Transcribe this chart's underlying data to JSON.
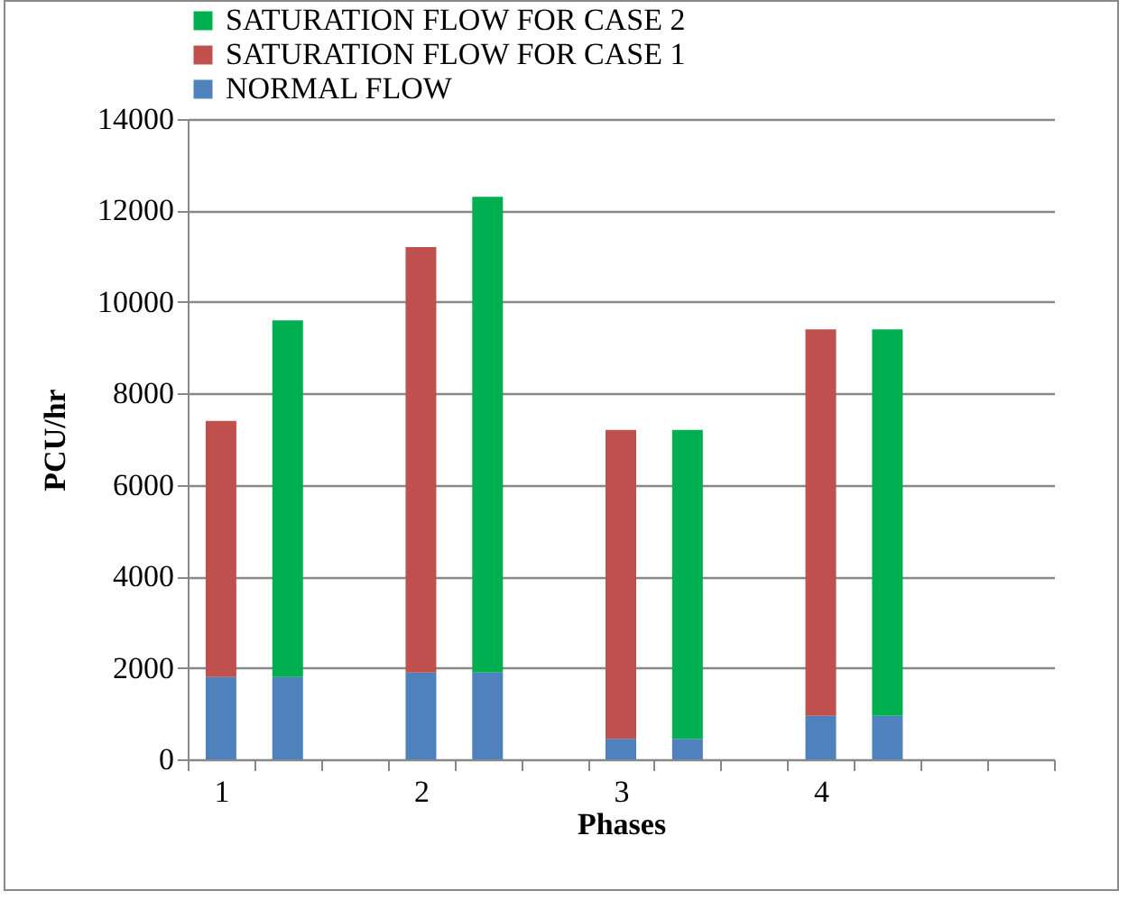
{
  "chart_data": {
    "type": "bar",
    "xlabel": "Phases",
    "ylabel": "PCU/hr",
    "categories": [
      "1",
      null,
      null,
      "2",
      null,
      null,
      "3",
      null,
      null,
      "4",
      null,
      null,
      null
    ],
    "series": [
      {
        "name": "NORMAL FLOW",
        "color": "#4f81bd",
        "values": [
          1800,
          1800,
          null,
          1900,
          1900,
          null,
          450,
          450,
          null,
          950,
          950,
          null,
          null
        ]
      },
      {
        "name": "SATURATION FLOW FOR CASE 1",
        "color": "#c0504d",
        "values": [
          5600,
          null,
          null,
          9300,
          null,
          null,
          6750,
          null,
          null,
          8450,
          null,
          null,
          null
        ]
      },
      {
        "name": "SATURATION FLOW FOR CASE 2",
        "color": "#00b050",
        "values": [
          null,
          7800,
          null,
          null,
          10400,
          null,
          null,
          6750,
          null,
          null,
          8450,
          null,
          null
        ]
      }
    ],
    "stacked": true,
    "ylim": [
      0,
      14000
    ],
    "yticks": [
      0,
      2000,
      4000,
      6000,
      8000,
      10000,
      12000,
      14000
    ],
    "grid": "y",
    "legend": "top"
  }
}
